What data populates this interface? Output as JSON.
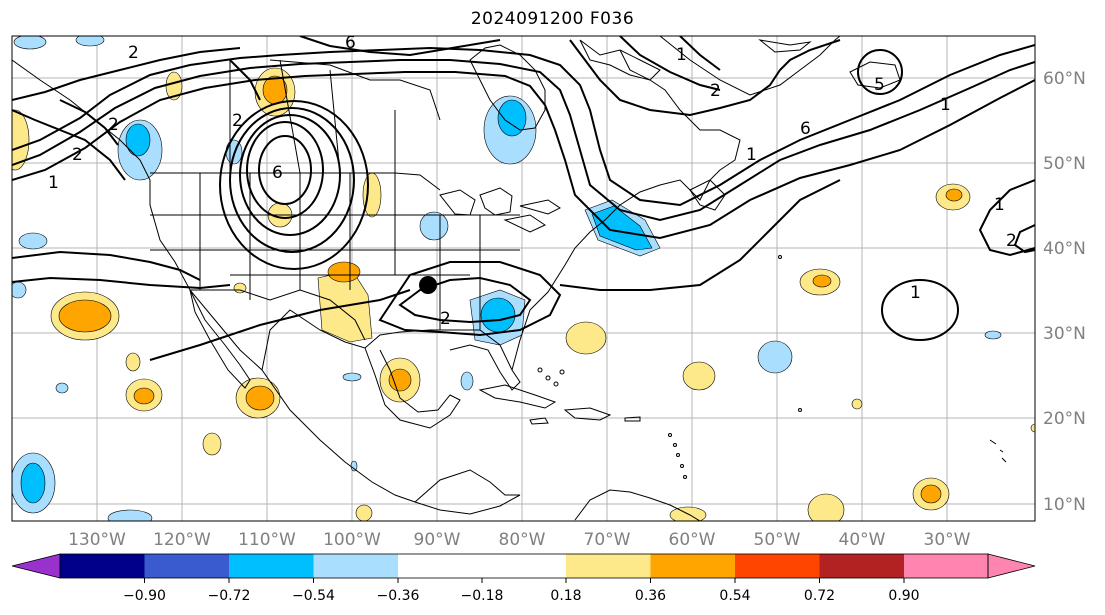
{
  "title": "2024091200 F036",
  "map": {
    "lat_labels": [
      "60°N",
      "50°N",
      "40°N",
      "30°N",
      "20°N",
      "10°N"
    ],
    "lon_labels": [
      "130°W",
      "120°W",
      "110°W",
      "100°W",
      "90°W",
      "80°W",
      "70°W",
      "60°W",
      "50°W",
      "40°W",
      "30°W"
    ],
    "contour_labels": [
      "2",
      "6",
      "1",
      "1",
      "2",
      "5",
      "6",
      "1",
      "6",
      "1",
      "2",
      "1",
      "2",
      "2",
      "2",
      "2",
      "1"
    ],
    "marker": "point-marker"
  },
  "colorbar": {
    "ticks": [
      "−0.90",
      "−0.72",
      "−0.54",
      "−0.36",
      "−0.18",
      "0.18",
      "0.36",
      "0.54",
      "0.72",
      "0.90"
    ],
    "colors": [
      "#9932cc",
      "#00008b",
      "#3a5bd0",
      "#00bfff",
      "#aadeff",
      "#ffffff",
      "#fde88a",
      "#ffa500",
      "#ff4500",
      "#b22222",
      "#ff85b0"
    ]
  },
  "colors": {
    "grid": "#b4b4b4",
    "coast": "#000000",
    "pos1": "#fde88a",
    "pos2": "#ffa500",
    "neg1": "#aadeff",
    "neg2": "#00bfff"
  }
}
